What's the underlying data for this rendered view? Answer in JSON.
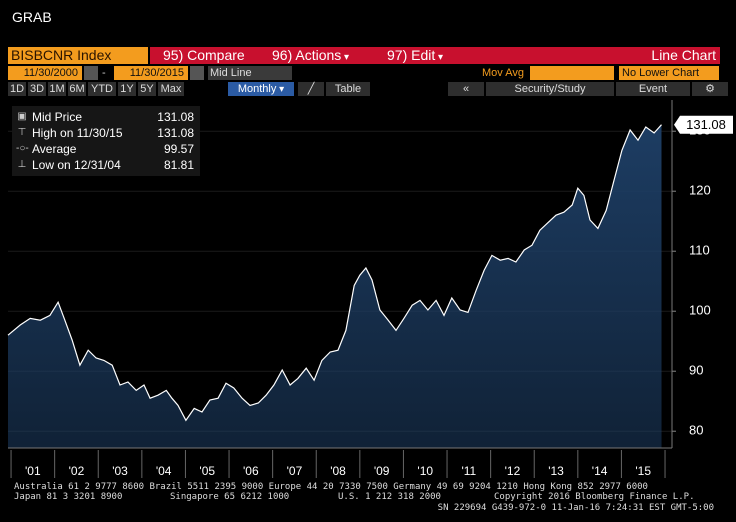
{
  "header": {
    "title": "GRAB"
  },
  "toolbar": {
    "security": "BISBCNR Index",
    "compare": "95) Compare",
    "actions": "96) Actions",
    "edit": "97) Edit",
    "chart_type": "Line Chart",
    "start_date": "11/30/2000",
    "end_date": "11/30/2015",
    "line_mode": "Mid Line",
    "mov_avg": "Mov Avg",
    "lower_chart": "No Lower Chart",
    "ranges": [
      "1D",
      "3D",
      "1M",
      "6M",
      "YTD",
      "1Y",
      "5Y",
      "Max"
    ],
    "period": "Monthly",
    "table": "Table",
    "security_study": "Security/Study",
    "event": "Event"
  },
  "chart_data": {
    "type": "line",
    "x": [
      2000.93,
      2001.21,
      2001.44,
      2001.67,
      2001.89,
      2002.08,
      2002.22,
      2002.4,
      2002.58,
      2002.77,
      2002.95,
      2003.13,
      2003.32,
      2003.5,
      2003.68,
      2003.87,
      2004.05,
      2004.19,
      2004.37,
      2004.56,
      2004.69,
      2004.83,
      2005.01,
      2005.2,
      2005.38,
      2005.56,
      2005.75,
      2005.93,
      2006.11,
      2006.3,
      2006.48,
      2006.67,
      2006.85,
      2007.03,
      2007.22,
      2007.4,
      2007.58,
      2007.77,
      2007.95,
      2008.13,
      2008.32,
      2008.5,
      2008.68,
      2008.87,
      2009.0,
      2009.14,
      2009.28,
      2009.46,
      2009.65,
      2009.83,
      2010.01,
      2010.2,
      2010.38,
      2010.56,
      2010.75,
      2010.93,
      2011.11,
      2011.3,
      2011.48,
      2011.67,
      2011.85,
      2012.03,
      2012.22,
      2012.4,
      2012.58,
      2012.77,
      2012.95,
      2013.13,
      2013.32,
      2013.5,
      2013.68,
      2013.87,
      2014.0,
      2014.14,
      2014.28,
      2014.46,
      2014.65,
      2014.83,
      2015.01,
      2015.2,
      2015.38,
      2015.56,
      2015.75,
      2015.92
    ],
    "series": [
      {
        "name": "Mid Price",
        "color": "#ffffff",
        "fill": "#1d3d63",
        "values": [
          96,
          97.7,
          98.8,
          98.5,
          99.3,
          101.5,
          98.8,
          95.2,
          91,
          93.5,
          92.2,
          91.8,
          91,
          87.7,
          88.2,
          86.8,
          87.7,
          85.5,
          86,
          86.8,
          85.5,
          84.3,
          81.81,
          83.8,
          83.2,
          85.2,
          85.5,
          88,
          87.2,
          85.5,
          84.3,
          84.7,
          86,
          87.7,
          90.2,
          87.7,
          88.8,
          90.5,
          88.5,
          91.8,
          93.2,
          93.5,
          96.8,
          104.3,
          106,
          107.2,
          105.2,
          100.2,
          98.5,
          96.8,
          98.8,
          101,
          101.8,
          100.2,
          101.8,
          99.3,
          102.2,
          100.2,
          99.8,
          103.5,
          106.8,
          109.3,
          108.5,
          108.8,
          108.2,
          110.2,
          111,
          113.5,
          114.8,
          116,
          116.5,
          117.7,
          120.5,
          119.3,
          115.2,
          113.8,
          116.8,
          121.8,
          126.8,
          130.2,
          128.5,
          130.7,
          129.7,
          131.08
        ]
      }
    ],
    "xlim": [
      2000.93,
      2016.16
    ],
    "xticks": [
      {
        "value": 2001.5,
        "label": "'01"
      },
      {
        "value": 2002.5,
        "label": "'02"
      },
      {
        "value": 2003.5,
        "label": "'03"
      },
      {
        "value": 2004.5,
        "label": "'04"
      },
      {
        "value": 2005.5,
        "label": "'05"
      },
      {
        "value": 2006.5,
        "label": "'06"
      },
      {
        "value": 2007.5,
        "label": "'07"
      },
      {
        "value": 2008.5,
        "label": "'08"
      },
      {
        "value": 2009.5,
        "label": "'09"
      },
      {
        "value": 2010.5,
        "label": "'10"
      },
      {
        "value": 2011.5,
        "label": "'11"
      },
      {
        "value": 2012.5,
        "label": "'12"
      },
      {
        "value": 2013.5,
        "label": "'13"
      },
      {
        "value": 2014.5,
        "label": "'14"
      },
      {
        "value": 2015.5,
        "label": "'15"
      }
    ],
    "ylim": [
      77.2,
      135.2
    ],
    "yticks": [
      80,
      90,
      100,
      110,
      120,
      130
    ],
    "last_value": 131.08,
    "legend": [
      {
        "label": "Mid Price",
        "value": 131.08
      },
      {
        "label": "High on 11/30/15",
        "value": 131.08
      },
      {
        "label": "Average",
        "value": 99.57
      },
      {
        "label": "Low on 12/31/04",
        "value": 81.81
      }
    ]
  },
  "footer": {
    "line1": "Australia 61 2 9777 8600 Brazil 5511 2395 9000 Europe 44 20 7330 7500 Germany 49 69 9204 1210 Hong Kong 852 2977 6000",
    "line2a": "Japan 81 3 3201 8900",
    "line2b": "Singapore 65 6212 1000",
    "line2c": "U.S. 1 212 318 2000",
    "line2d": "Copyright 2016 Bloomberg Finance L.P.",
    "line3": "SN 229694 G439-972-0 11-Jan-16  7:24:31 EST  GMT-5:00"
  }
}
